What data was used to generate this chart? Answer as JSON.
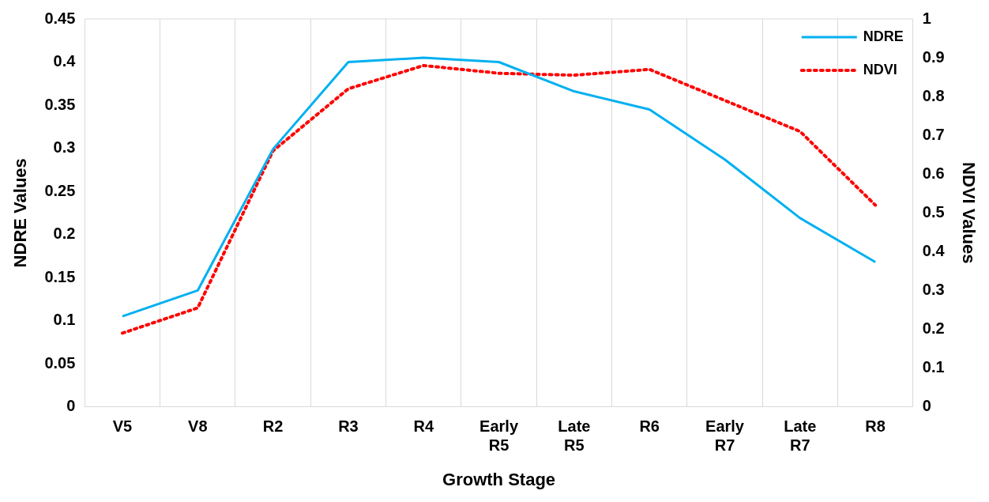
{
  "chart_data": {
    "type": "line",
    "xlabel": "Growth Stage",
    "ylabel": "NDRE Values",
    "y2label": "NDVI Values",
    "categories": [
      "V5",
      "V8",
      "R2",
      "R3",
      "R4",
      "Early R5",
      "Late R5",
      "R6",
      "Early R7",
      "Late R7",
      "R8"
    ],
    "series": [
      {
        "name": "NDRE",
        "color": "#00b0f0",
        "line_style": "solid",
        "values": [
          0.105,
          0.135,
          0.299,
          0.4,
          0.405,
          0.4,
          0.366,
          0.345,
          0.287,
          0.219,
          0.168
        ]
      },
      {
        "name": "NDVI",
        "color": "#ff0000",
        "line_style": "dotted",
        "axis": "y2",
        "values": [
          0.19,
          0.255,
          0.66,
          0.82,
          0.88,
          0.86,
          0.855,
          0.87,
          0.79,
          0.71,
          0.52
        ]
      }
    ],
    "ylim": [
      0,
      0.45
    ],
    "yticks": [
      0,
      0.05,
      0.1,
      0.15,
      0.2,
      0.25,
      0.3,
      0.35,
      0.4,
      0.45
    ],
    "y2lim": [
      0,
      1
    ],
    "y2ticks": [
      0,
      0.1,
      0.2,
      0.3,
      0.4,
      0.5,
      0.6,
      0.7,
      0.8,
      0.9,
      1
    ],
    "grid": "x",
    "legend": "top right",
    "marker": "none"
  }
}
